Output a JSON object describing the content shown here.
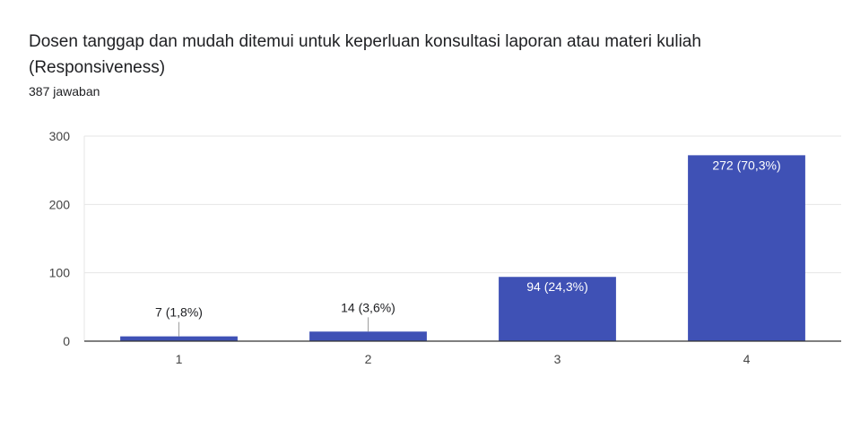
{
  "header": {
    "title": "Dosen tanggap dan mudah ditemui untuk keperluan konsultasi laporan atau materi kuliah (Responsiveness)",
    "subtitle": "387 jawaban"
  },
  "colors": {
    "bar": "#3f51b5",
    "grid": "#e6e6e6",
    "axis": "#333333"
  },
  "chart_data": {
    "type": "bar",
    "categories": [
      "1",
      "2",
      "3",
      "4"
    ],
    "values": [
      7,
      14,
      94,
      272
    ],
    "data_labels": [
      "7 (1,8%)",
      "14 (3,6%)",
      "94 (24,3%)",
      "272 (70,3%)"
    ],
    "y_ticks": [
      0,
      100,
      200,
      300
    ],
    "ylim": [
      0,
      300
    ],
    "grid": true,
    "legend": "none"
  }
}
